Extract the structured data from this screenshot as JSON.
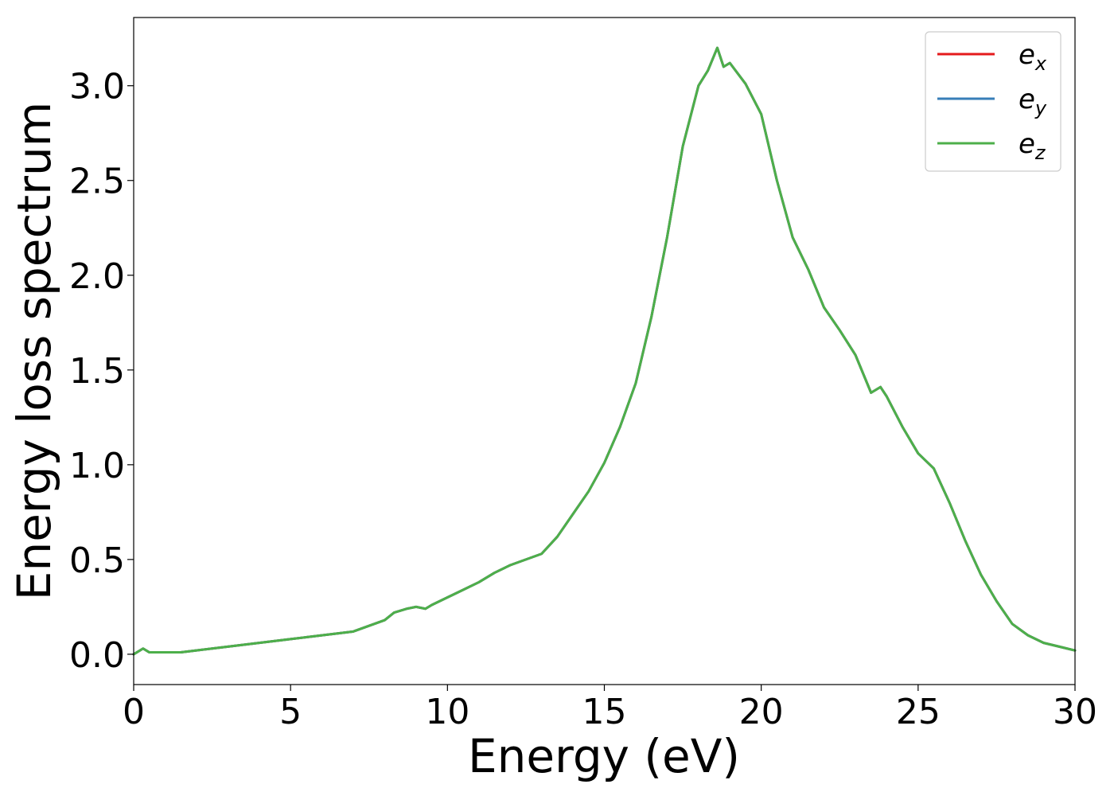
{
  "chart_data": {
    "type": "line",
    "xlabel": "Energy (eV)",
    "ylabel": "Energy loss spectrum",
    "xlim": [
      0,
      30
    ],
    "ylim": [
      -0.16,
      3.36
    ],
    "xticks": [
      0,
      5,
      10,
      15,
      20,
      25,
      30
    ],
    "xtick_labels": [
      "0",
      "5",
      "10",
      "15",
      "20",
      "25",
      "30"
    ],
    "yticks": [
      0.0,
      0.5,
      1.0,
      1.5,
      2.0,
      2.5,
      3.0
    ],
    "ytick_labels": [
      "0.0",
      "0.5",
      "1.0",
      "1.5",
      "2.0",
      "2.5",
      "3.0"
    ],
    "grid": false,
    "legend_position": "top-right",
    "x": [
      0,
      0.3,
      0.5,
      1,
      1.5,
      2,
      2.5,
      3,
      3.5,
      4,
      4.5,
      5,
      5.5,
      6,
      6.5,
      7,
      7.5,
      8,
      8.3,
      8.7,
      9,
      9.3,
      9.5,
      10,
      10.5,
      11,
      11.5,
      12,
      12.5,
      13,
      13.5,
      14,
      14.5,
      15,
      15.5,
      16,
      16.5,
      17,
      17.5,
      18,
      18.3,
      18.6,
      18.8,
      19,
      19.5,
      20,
      20.5,
      21,
      21.5,
      22,
      22.5,
      23,
      23.5,
      23.8,
      24,
      24.5,
      25,
      25.5,
      26,
      26.5,
      27,
      27.5,
      28,
      28.5,
      29,
      29.5,
      30
    ],
    "series": [
      {
        "name": "x",
        "label_base": "e",
        "label_sub": "x",
        "color": "#e41a1c",
        "values": [
          0.0,
          0.03,
          0.01,
          0.01,
          0.01,
          0.02,
          0.03,
          0.04,
          0.05,
          0.06,
          0.07,
          0.08,
          0.09,
          0.1,
          0.11,
          0.12,
          0.15,
          0.18,
          0.22,
          0.24,
          0.25,
          0.24,
          0.26,
          0.3,
          0.34,
          0.38,
          0.43,
          0.47,
          0.5,
          0.53,
          0.62,
          0.74,
          0.86,
          1.01,
          1.2,
          1.43,
          1.78,
          2.2,
          2.68,
          3.0,
          3.08,
          3.2,
          3.1,
          3.12,
          3.01,
          2.85,
          2.5,
          2.2,
          2.03,
          1.83,
          1.71,
          1.58,
          1.38,
          1.41,
          1.36,
          1.2,
          1.06,
          0.98,
          0.8,
          0.6,
          0.42,
          0.28,
          0.16,
          0.1,
          0.06,
          0.04,
          0.02
        ]
      },
      {
        "name": "y",
        "label_base": "e",
        "label_sub": "y",
        "color": "#377eb8",
        "values": [
          0.0,
          0.03,
          0.01,
          0.01,
          0.01,
          0.02,
          0.03,
          0.04,
          0.05,
          0.06,
          0.07,
          0.08,
          0.09,
          0.1,
          0.11,
          0.12,
          0.15,
          0.18,
          0.22,
          0.24,
          0.25,
          0.24,
          0.26,
          0.3,
          0.34,
          0.38,
          0.43,
          0.47,
          0.5,
          0.53,
          0.62,
          0.74,
          0.86,
          1.01,
          1.2,
          1.43,
          1.78,
          2.2,
          2.68,
          3.0,
          3.08,
          3.2,
          3.1,
          3.12,
          3.01,
          2.85,
          2.5,
          2.2,
          2.03,
          1.83,
          1.71,
          1.58,
          1.38,
          1.41,
          1.36,
          1.2,
          1.06,
          0.98,
          0.8,
          0.6,
          0.42,
          0.28,
          0.16,
          0.1,
          0.06,
          0.04,
          0.02
        ]
      },
      {
        "name": "z",
        "label_base": "e",
        "label_sub": "z",
        "color": "#4daf4a",
        "values": [
          0.0,
          0.03,
          0.01,
          0.01,
          0.01,
          0.02,
          0.03,
          0.04,
          0.05,
          0.06,
          0.07,
          0.08,
          0.09,
          0.1,
          0.11,
          0.12,
          0.15,
          0.18,
          0.22,
          0.24,
          0.25,
          0.24,
          0.26,
          0.3,
          0.34,
          0.38,
          0.43,
          0.47,
          0.5,
          0.53,
          0.62,
          0.74,
          0.86,
          1.01,
          1.2,
          1.43,
          1.78,
          2.2,
          2.68,
          3.0,
          3.08,
          3.2,
          3.1,
          3.12,
          3.01,
          2.85,
          2.5,
          2.2,
          2.03,
          1.83,
          1.71,
          1.58,
          1.38,
          1.41,
          1.36,
          1.2,
          1.06,
          0.98,
          0.8,
          0.6,
          0.42,
          0.28,
          0.16,
          0.1,
          0.06,
          0.04,
          0.02
        ]
      }
    ]
  }
}
